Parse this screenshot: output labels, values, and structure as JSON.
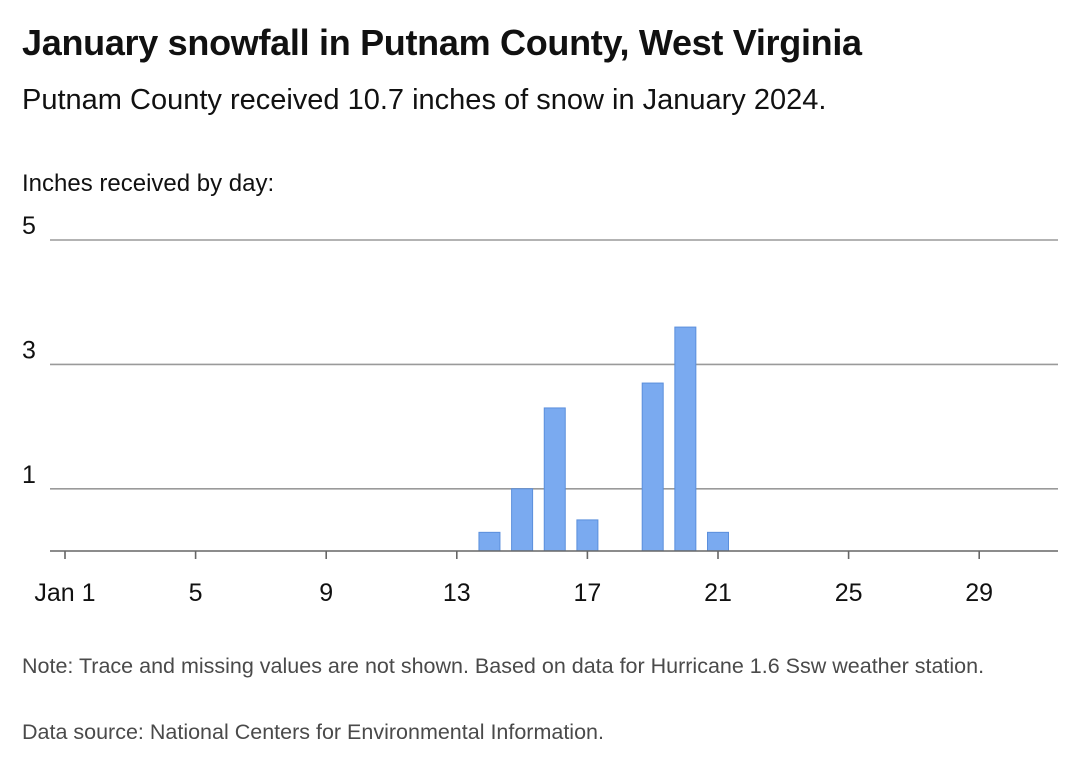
{
  "header": {
    "title": "January snowfall in Putnam County, West Virginia",
    "subtitle": "Putnam County received 10.7 inches of snow in January 2024."
  },
  "footer": {
    "note": "Note: Trace and missing values are not shown. Based on data for Hurricane 1.6 Ssw weather station.",
    "source": "Data source: National Centers for Environmental Information."
  },
  "colors": {
    "bar": "#7aaaf0",
    "bar_stroke": "#5b8fdc",
    "grid": "#9a9a9a",
    "axis": "#666666"
  },
  "chart_data": {
    "type": "bar",
    "ylabel": "Inches received by day:",
    "x_ticks": [
      {
        "day": 1,
        "label": "Jan 1"
      },
      {
        "day": 5,
        "label": "5"
      },
      {
        "day": 9,
        "label": "9"
      },
      {
        "day": 13,
        "label": "13"
      },
      {
        "day": 17,
        "label": "17"
      },
      {
        "day": 21,
        "label": "21"
      },
      {
        "day": 25,
        "label": "25"
      },
      {
        "day": 29,
        "label": "29"
      }
    ],
    "y_ticks": [
      1,
      3,
      5
    ],
    "xlim": [
      0.5,
      31.9
    ],
    "ylim": [
      0,
      5
    ],
    "grid": true,
    "x": [
      14,
      15,
      16,
      17,
      19,
      20,
      21
    ],
    "values": [
      0.3,
      1.0,
      2.3,
      0.5,
      2.7,
      3.6,
      0.3
    ]
  }
}
